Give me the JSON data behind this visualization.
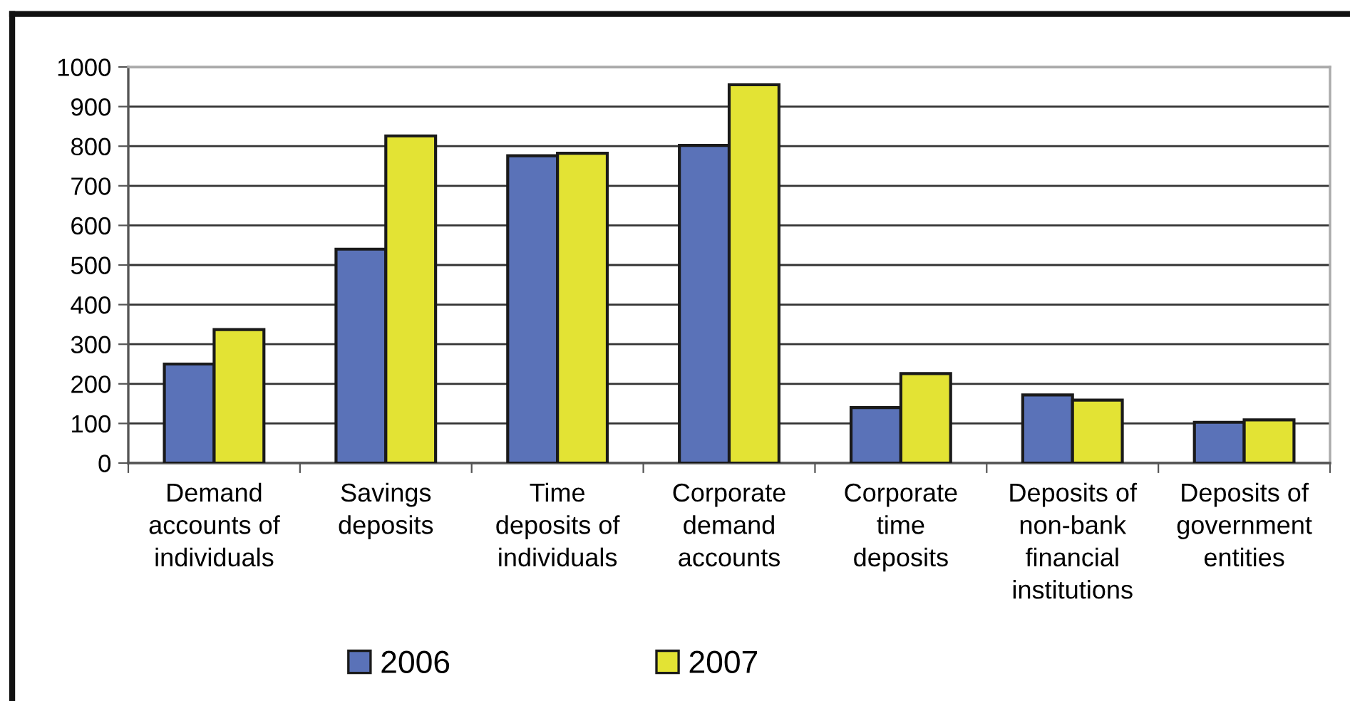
{
  "chart_data": {
    "type": "bar",
    "categories": [
      "Demand\naccounts of\nindividuals",
      "Savings\ndeposits",
      "Time\ndeposits of\nindividuals",
      "Corporate\ndemand\naccounts",
      "Corporate\ntime\ndeposits",
      "Deposits of\nnon-bank\nfinancial\ninstitutions",
      "Deposits of\ngovernment\nentities"
    ],
    "series": [
      {
        "name": "2006",
        "color": "#5a72b8",
        "values": [
          250,
          540,
          776,
          802,
          140,
          172,
          103
        ]
      },
      {
        "name": "2007",
        "color": "#e3e334",
        "values": [
          337,
          826,
          782,
          955,
          226,
          159,
          109
        ]
      }
    ],
    "ylim": [
      0,
      1000
    ],
    "yticks": [
      0,
      100,
      200,
      300,
      400,
      500,
      600,
      700,
      800,
      900,
      1000
    ],
    "grid": "y",
    "legend": "bottom"
  }
}
